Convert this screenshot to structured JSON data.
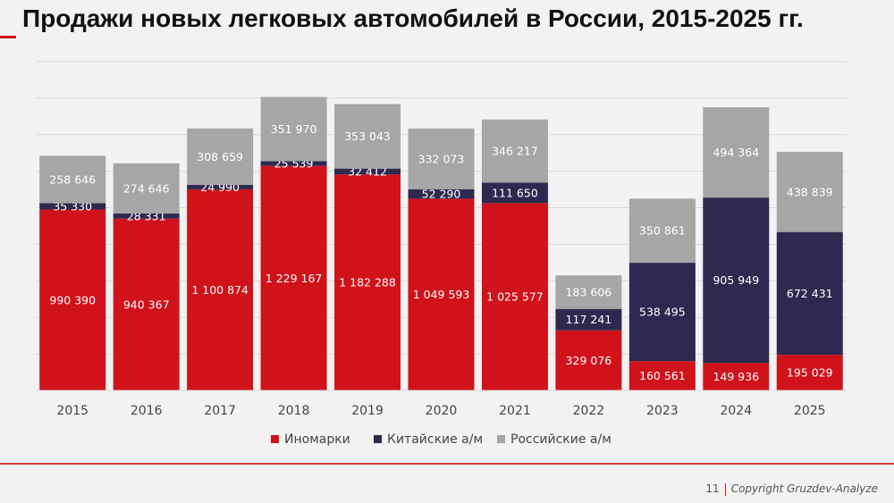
{
  "chart_data": {
    "type": "bar",
    "stacked": true,
    "title": "Продажи новых легковых автомобилей в России, 2015-2025 гг.",
    "xlabel": "",
    "ylabel": "",
    "ylim": [
      0,
      1800000
    ],
    "grid": true,
    "legend_position": "bottom",
    "categories": [
      "2015",
      "2016",
      "2017",
      "2018",
      "2019",
      "2020",
      "2021",
      "2022",
      "2023",
      "2024",
      "2025"
    ],
    "series": [
      {
        "name": "Иномарки",
        "color": "#d0121b",
        "values": [
          990390,
          940367,
          1100874,
          1229167,
          1182288,
          1049593,
          1025577,
          329076,
          160561,
          149936,
          195029
        ]
      },
      {
        "name": "Китайские а/м",
        "color": "#2e2a4f",
        "values": [
          35330,
          28331,
          24990,
          25539,
          32412,
          52290,
          111650,
          117241,
          538495,
          905949,
          672431
        ]
      },
      {
        "name": "Российские а/м",
        "color": "#a6a6a6",
        "values": [
          258646,
          274646,
          308659,
          351970,
          353043,
          332073,
          346217,
          183606,
          350861,
          494364,
          438839
        ]
      }
    ]
  },
  "footer": {
    "page": "11",
    "copyright": "Copyright Gruzdev-Analyze"
  }
}
